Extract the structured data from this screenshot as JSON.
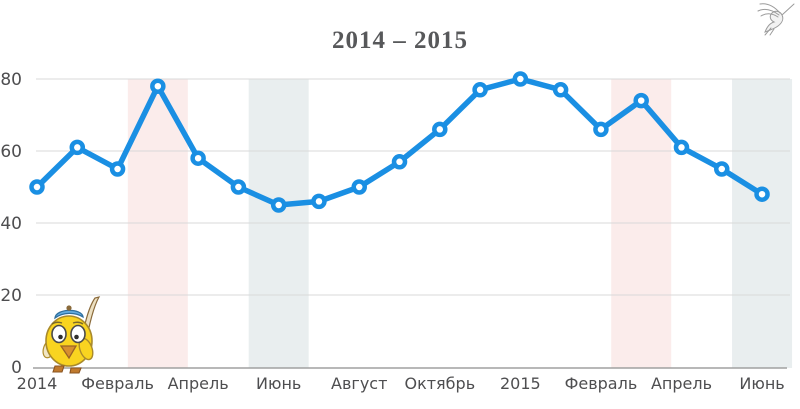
{
  "header": {
    "title": "2014 – 2015",
    "logo_icon": "hummingbird-icon"
  },
  "mascot": {
    "icon": "chick-with-quill-icon"
  },
  "chart_data": {
    "type": "line",
    "title": "2014 – 2015",
    "series": [
      {
        "name": "2014 – 2015",
        "values": [
          50,
          61,
          55,
          78,
          58,
          50,
          45,
          46,
          50,
          57,
          66,
          77,
          80,
          77,
          66,
          74,
          61,
          55,
          48
        ]
      }
    ],
    "x_tick_labels": [
      "2014",
      "Февраль",
      "Апрель",
      "Июнь",
      "Август",
      "Октябрь",
      "2015",
      "Февраль",
      "Апрель",
      "Июнь"
    ],
    "x_tick_every_n_points": 2,
    "y_ticks": [
      0,
      20,
      40,
      60,
      80
    ],
    "ylim": [
      0,
      85
    ],
    "grid": true,
    "legend": false,
    "highlight_bands": [
      {
        "center_point_index": 3,
        "tone": "pink"
      },
      {
        "center_point_index": 6,
        "tone": "gray"
      },
      {
        "center_point_index": 15,
        "tone": "pink"
      },
      {
        "center_point_index": 18,
        "tone": "gray"
      }
    ],
    "colors": {
      "line": "#1a8fe3",
      "marker_fill": "#ffffff",
      "grid": "#d9d9d9",
      "axis": "#a0a0a0",
      "band_pink": "#fbeceb",
      "band_gray": "#e9eeef",
      "tick_text": "#4e4e50",
      "title_text": "#57585a"
    }
  }
}
